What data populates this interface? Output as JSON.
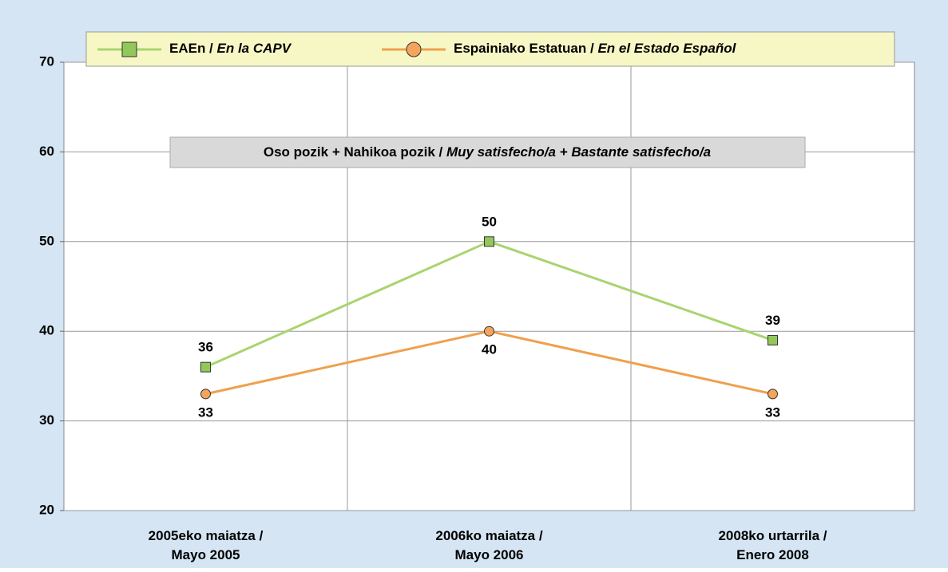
{
  "chart_data": {
    "type": "line",
    "annotation": "Oso pozik + Nahikoa pozik / Muy satisfecho/a + Bastante satisfecho/a",
    "categories": [
      "2005eko maiatza / Mayo 2005",
      "2006ko maiatza / Mayo 2006",
      "2008ko urtarrila / Enero 2008"
    ],
    "series": [
      {
        "name": "EAEn / En la CAPV",
        "color": "#a9d46f",
        "marker_color": "#92c85a",
        "marker": "square",
        "values": [
          36,
          50,
          39
        ]
      },
      {
        "name": "Espainiako Estatuan / En el Estado Español",
        "color": "#f0a04e",
        "marker_color": "#f4a45c",
        "marker": "circle",
        "values": [
          33,
          40,
          33
        ]
      }
    ],
    "ylim": [
      20,
      70
    ],
    "yticks": [
      20,
      30,
      40,
      50,
      60,
      70
    ],
    "grid": true,
    "legend": "top"
  }
}
